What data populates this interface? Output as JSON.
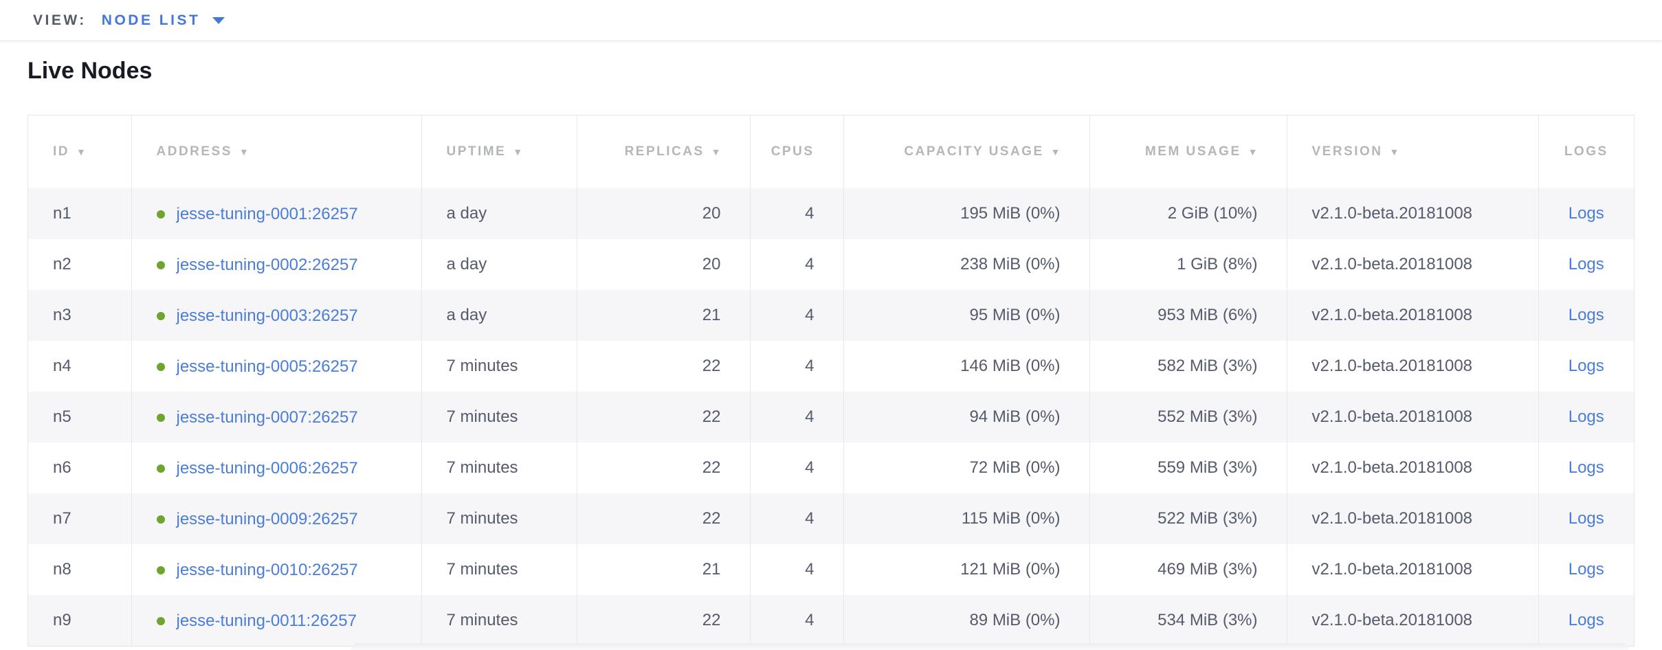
{
  "view_bar": {
    "label": "VIEW:",
    "selected": "NODE LIST"
  },
  "page": {
    "title": "Live Nodes"
  },
  "icons": {
    "sort_descending": "▼"
  },
  "colors": {
    "accent_blue": "#4a7dd9",
    "health_green": "#6fa42f",
    "header_gray": "#b4b6ba",
    "body_text": "#555b6d",
    "row_stripe": "#f6f6f8"
  },
  "table": {
    "logs_label": "Logs",
    "columns": [
      {
        "key": "id",
        "label": "ID",
        "sortable": true,
        "sorted": true,
        "align": "left"
      },
      {
        "key": "address",
        "label": "ADDRESS",
        "sortable": true,
        "sorted": true,
        "align": "left"
      },
      {
        "key": "uptime",
        "label": "UPTIME",
        "sortable": true,
        "sorted": true,
        "align": "left"
      },
      {
        "key": "replicas",
        "label": "REPLICAS",
        "sortable": true,
        "sorted": true,
        "align": "right"
      },
      {
        "key": "cpus",
        "label": "CPUS",
        "sortable": false,
        "sorted": false,
        "align": "right"
      },
      {
        "key": "capacity",
        "label": "CAPACITY USAGE",
        "sortable": true,
        "sorted": true,
        "align": "right"
      },
      {
        "key": "mem",
        "label": "MEM USAGE",
        "sortable": true,
        "sorted": true,
        "align": "right"
      },
      {
        "key": "version",
        "label": "VERSION",
        "sortable": true,
        "sorted": true,
        "align": "left"
      },
      {
        "key": "logs",
        "label": "LOGS",
        "sortable": false,
        "sorted": false,
        "align": "center"
      }
    ],
    "rows": [
      {
        "id": "n1",
        "status": "healthy",
        "address": "jesse-tuning-0001:26257",
        "uptime": "a day",
        "replicas": "20",
        "cpus": "4",
        "capacity": "195 MiB (0%)",
        "mem": "2 GiB (10%)",
        "version": "v2.1.0-beta.20181008"
      },
      {
        "id": "n2",
        "status": "healthy",
        "address": "jesse-tuning-0002:26257",
        "uptime": "a day",
        "replicas": "20",
        "cpus": "4",
        "capacity": "238 MiB (0%)",
        "mem": "1 GiB (8%)",
        "version": "v2.1.0-beta.20181008"
      },
      {
        "id": "n3",
        "status": "healthy",
        "address": "jesse-tuning-0003:26257",
        "uptime": "a day",
        "replicas": "21",
        "cpus": "4",
        "capacity": "95 MiB (0%)",
        "mem": "953 MiB (6%)",
        "version": "v2.1.0-beta.20181008"
      },
      {
        "id": "n4",
        "status": "healthy",
        "address": "jesse-tuning-0005:26257",
        "uptime": "7 minutes",
        "replicas": "22",
        "cpus": "4",
        "capacity": "146 MiB (0%)",
        "mem": "582 MiB (3%)",
        "version": "v2.1.0-beta.20181008"
      },
      {
        "id": "n5",
        "status": "healthy",
        "address": "jesse-tuning-0007:26257",
        "uptime": "7 minutes",
        "replicas": "22",
        "cpus": "4",
        "capacity": "94 MiB (0%)",
        "mem": "552 MiB (3%)",
        "version": "v2.1.0-beta.20181008"
      },
      {
        "id": "n6",
        "status": "healthy",
        "address": "jesse-tuning-0006:26257",
        "uptime": "7 minutes",
        "replicas": "22",
        "cpus": "4",
        "capacity": "72 MiB (0%)",
        "mem": "559 MiB (3%)",
        "version": "v2.1.0-beta.20181008"
      },
      {
        "id": "n7",
        "status": "healthy",
        "address": "jesse-tuning-0009:26257",
        "uptime": "7 minutes",
        "replicas": "22",
        "cpus": "4",
        "capacity": "115 MiB (0%)",
        "mem": "522 MiB (3%)",
        "version": "v2.1.0-beta.20181008"
      },
      {
        "id": "n8",
        "status": "healthy",
        "address": "jesse-tuning-0010:26257",
        "uptime": "7 minutes",
        "replicas": "21",
        "cpus": "4",
        "capacity": "121 MiB (0%)",
        "mem": "469 MiB (3%)",
        "version": "v2.1.0-beta.20181008"
      },
      {
        "id": "n9",
        "status": "healthy",
        "address": "jesse-tuning-0011:26257",
        "uptime": "7 minutes",
        "replicas": "22",
        "cpus": "4",
        "capacity": "89 MiB (0%)",
        "mem": "534 MiB (3%)",
        "version": "v2.1.0-beta.20181008"
      }
    ]
  }
}
